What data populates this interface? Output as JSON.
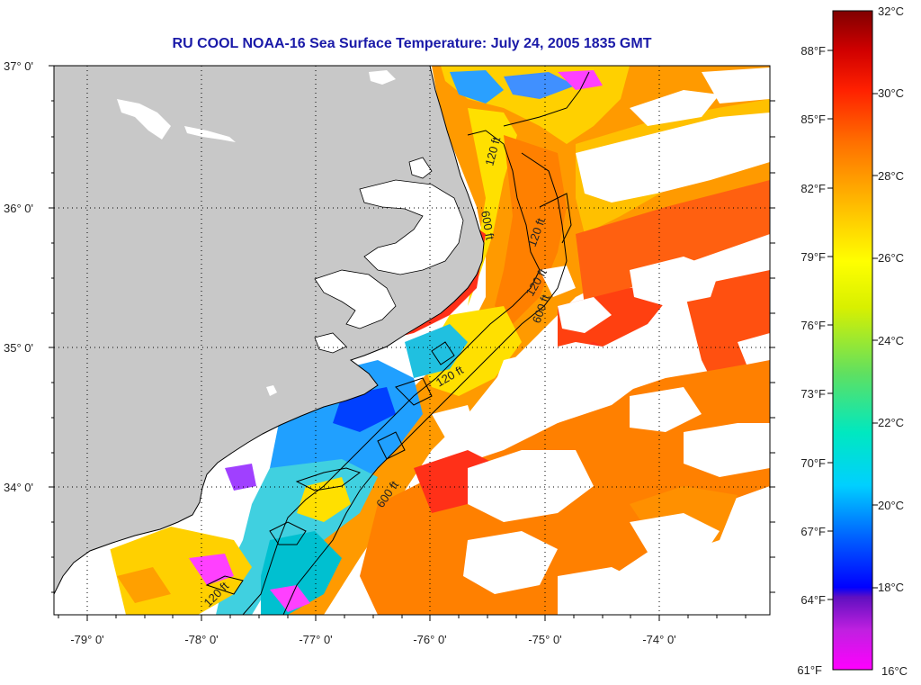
{
  "title": "RU COOL  NOAA-16  Sea Surface Temperature:  July 24, 2005 1835 GMT",
  "map": {
    "lat_ticks": [
      "37° 0'",
      "36° 0'",
      "35° 0'",
      "34° 0'"
    ],
    "lon_ticks": [
      "-79° 0'",
      "-78° 0'",
      "-77° 0'",
      "-76° 0'",
      "-75° 0'",
      "-74° 0'"
    ],
    "contour_labels": [
      "120 ft",
      "120 ft",
      "120 ft",
      "120 ft",
      "600 ft",
      "600 ft",
      "600 ft",
      "120 ft"
    ],
    "land_color": "#c8c8c8",
    "cloud_color": "#ffffff"
  },
  "colorbar": {
    "celsius_labels": [
      "32°C",
      "30°C",
      "28°C",
      "26°C",
      "24°C",
      "22°C",
      "20°C",
      "18°C",
      "16°C"
    ],
    "fahrenheit_labels": [
      "88°F",
      "85°F",
      "82°F",
      "79°F",
      "76°F",
      "73°F",
      "70°F",
      "67°F",
      "64°F",
      "61°F"
    ],
    "range_c": [
      16,
      32
    ],
    "colors": [
      "#ff00ff",
      "#8000c0",
      "#0000ff",
      "#00a0ff",
      "#00e0e0",
      "#40e080",
      "#c0f000",
      "#ffff00",
      "#ffa000",
      "#ff6000",
      "#ff0000",
      "#c00000",
      "#800000"
    ]
  }
}
